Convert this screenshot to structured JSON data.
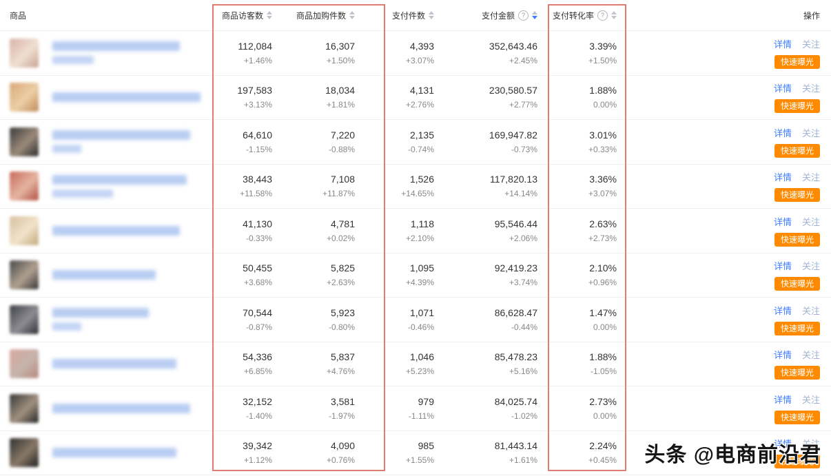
{
  "table": {
    "columns": {
      "product": "商品",
      "visitors": "商品访客数",
      "cart_items": "商品加购件数",
      "paid_items": "支付件数",
      "paid_amount": "支付金额",
      "conversion": "支付转化率",
      "actions": "操作"
    },
    "sort": {
      "active_column": "paid_amount",
      "direction": "desc"
    },
    "row_actions": {
      "detail": "详情",
      "follow": "关注",
      "expose": "快速曝光"
    },
    "rows": [
      {
        "visitors": "112,084",
        "visitors_change": "+1.46%",
        "cart": "16,307",
        "cart_change": "+1.50%",
        "paid": "4,393",
        "paid_change": "+3.07%",
        "amount": "352,643.46",
        "amount_change": "+2.45%",
        "conversion": "3.39%",
        "conversion_change": "+1.50%",
        "thumb_colors": [
          "#d8b0a8",
          "#efe0d2",
          "#c9a08e"
        ],
        "name_bars": [
          185,
          60
        ]
      },
      {
        "visitors": "197,583",
        "visitors_change": "+3.13%",
        "cart": "18,034",
        "cart_change": "+1.81%",
        "paid": "4,131",
        "paid_change": "+2.76%",
        "amount": "230,580.57",
        "amount_change": "+2.77%",
        "conversion": "1.88%",
        "conversion_change": "0.00%",
        "thumb_colors": [
          "#d9a878",
          "#eccfa6",
          "#c08a5a"
        ],
        "name_bars": [
          215,
          0
        ]
      },
      {
        "visitors": "64,610",
        "visitors_change": "-1.15%",
        "cart": "7,220",
        "cart_change": "-0.88%",
        "paid": "2,135",
        "paid_change": "-0.74%",
        "amount": "169,947.82",
        "amount_change": "-0.73%",
        "conversion": "3.01%",
        "conversion_change": "+0.33%",
        "thumb_colors": [
          "#3a3a3a",
          "#9a8a7a",
          "#2c2c2c"
        ],
        "name_bars": [
          200,
          42
        ]
      },
      {
        "visitors": "38,443",
        "visitors_change": "+11.58%",
        "cart": "7,108",
        "cart_change": "+11.87%",
        "paid": "1,526",
        "paid_change": "+14.65%",
        "amount": "117,820.13",
        "amount_change": "+14.14%",
        "conversion": "3.36%",
        "conversion_change": "+3.07%",
        "thumb_colors": [
          "#c86858",
          "#e5b5a2",
          "#b05040"
        ],
        "name_bars": [
          195,
          88
        ]
      },
      {
        "visitors": "41,130",
        "visitors_change": "-0.33%",
        "cart": "4,781",
        "cart_change": "+0.02%",
        "paid": "1,118",
        "paid_change": "+2.10%",
        "amount": "95,546.44",
        "amount_change": "+2.06%",
        "conversion": "2.63%",
        "conversion_change": "+2.73%",
        "thumb_colors": [
          "#d8c0a0",
          "#f1e3ca",
          "#c4a87e"
        ],
        "name_bars": [
          185,
          0
        ]
      },
      {
        "visitors": "50,455",
        "visitors_change": "+3.68%",
        "cart": "5,825",
        "cart_change": "+2.63%",
        "paid": "1,095",
        "paid_change": "+4.39%",
        "amount": "92,419.23",
        "amount_change": "+3.74%",
        "conversion": "2.10%",
        "conversion_change": "+0.96%",
        "thumb_colors": [
          "#484848",
          "#b0a090",
          "#353535"
        ],
        "name_bars": [
          150,
          0
        ]
      },
      {
        "visitors": "70,544",
        "visitors_change": "-0.87%",
        "cart": "5,923",
        "cart_change": "-0.80%",
        "paid": "1,071",
        "paid_change": "-0.46%",
        "amount": "86,628.47",
        "amount_change": "-0.44%",
        "conversion": "1.47%",
        "conversion_change": "0.00%",
        "thumb_colors": [
          "#404048",
          "#8c8c92",
          "#2e2e34"
        ],
        "name_bars": [
          140,
          42
        ]
      },
      {
        "visitors": "54,336",
        "visitors_change": "+6.85%",
        "cart": "5,837",
        "cart_change": "+4.76%",
        "paid": "1,046",
        "paid_change": "+5.23%",
        "amount": "85,478.23",
        "amount_change": "+5.16%",
        "conversion": "1.88%",
        "conversion_change": "-1.05%",
        "thumb_colors": [
          "#d8a8a0",
          "#c5b3ab",
          "#b88a80"
        ],
        "name_bars": [
          180,
          0
        ]
      },
      {
        "visitors": "32,152",
        "visitors_change": "-1.40%",
        "cart": "3,581",
        "cart_change": "-1.97%",
        "paid": "979",
        "paid_change": "-1.11%",
        "amount": "84,025.74",
        "amount_change": "-1.02%",
        "conversion": "2.73%",
        "conversion_change": "0.00%",
        "thumb_colors": [
          "#383838",
          "#a09080",
          "#262626"
        ],
        "name_bars": [
          200,
          0
        ]
      },
      {
        "visitors": "39,342",
        "visitors_change": "+1.12%",
        "cart": "4,090",
        "cart_change": "+0.76%",
        "paid": "985",
        "paid_change": "+1.55%",
        "amount": "81,443.14",
        "amount_change": "+1.61%",
        "conversion": "2.24%",
        "conversion_change": "+0.45%",
        "thumb_colors": [
          "#303030",
          "#887868",
          "#202020"
        ],
        "name_bars": [
          180,
          0
        ]
      }
    ]
  },
  "help_icon_label": "?",
  "highlight_color": "#e07b72",
  "accent_colors": {
    "link_blue": "#3d7eff",
    "button_orange": "#ff8a00"
  },
  "watermark": "头条 @电商前沿君"
}
